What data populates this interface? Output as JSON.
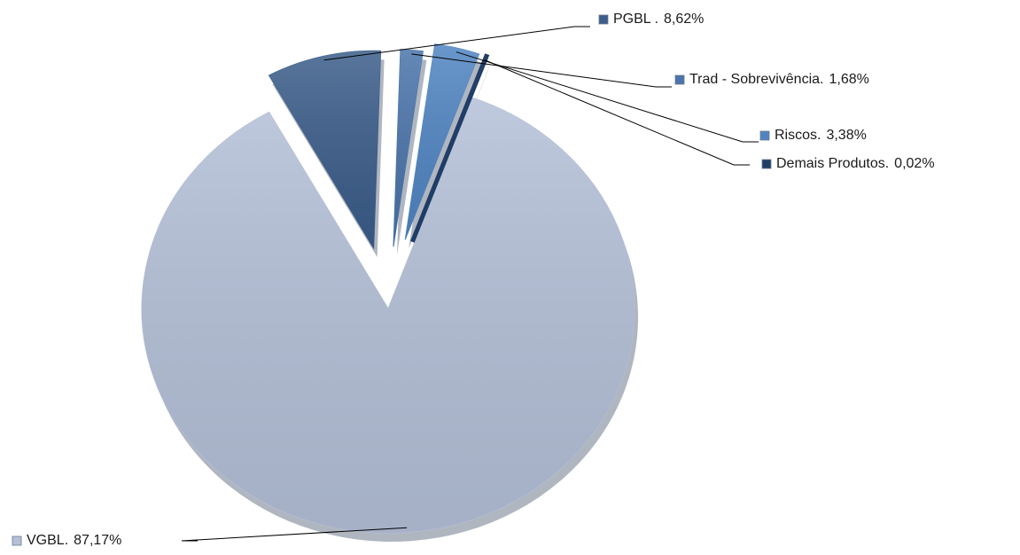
{
  "chart_data": {
    "type": "pie",
    "categories": [
      "VGBL.",
      "PGBL .",
      "Trad - Sobrevivência.",
      "Riscos.",
      "Demais Produtos."
    ],
    "values": [
      87.17,
      8.62,
      1.68,
      3.38,
      0.02
    ],
    "value_labels": [
      "87,17%",
      "8,62%",
      "1,68%",
      "3,38%",
      "0,02%"
    ],
    "colors": [
      "#b4c0d8",
      "#3b5d8a",
      "#4a74aa",
      "#5085c2",
      "#1f3d66"
    ]
  }
}
